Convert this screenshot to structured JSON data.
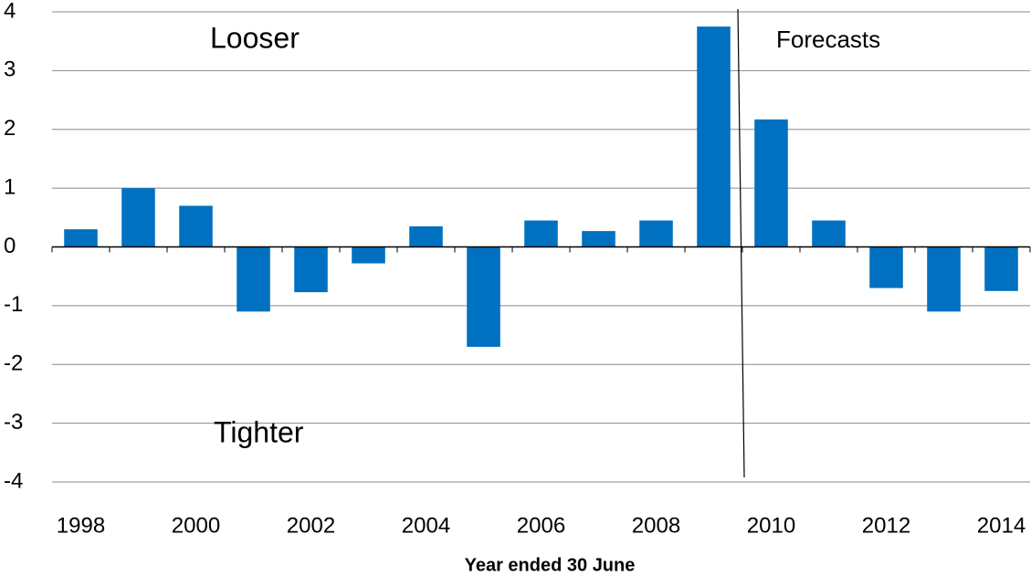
{
  "chart_data": {
    "type": "bar",
    "x_label": "Year ended 30 June",
    "annotations": [
      "Looser",
      "Tighter",
      "Forecasts"
    ],
    "categories": [
      "1998",
      null,
      "2000",
      null,
      "2002",
      null,
      "2004",
      null,
      "2006",
      null,
      "2008",
      null,
      "2010",
      null,
      "2012",
      null,
      "2014"
    ],
    "values": [
      0.3,
      1.0,
      0.7,
      -1.1,
      -0.77,
      -0.28,
      0.35,
      -1.7,
      0.45,
      0.27,
      0.45,
      3.75,
      2.17,
      0.45,
      -0.7,
      -1.1,
      -0.75
    ],
    "color": "#0070c0",
    "ylim": [
      -4,
      4
    ],
    "yticks": [
      -4,
      -3,
      -2,
      -1,
      0,
      1,
      2,
      3,
      4
    ],
    "grid": true
  }
}
